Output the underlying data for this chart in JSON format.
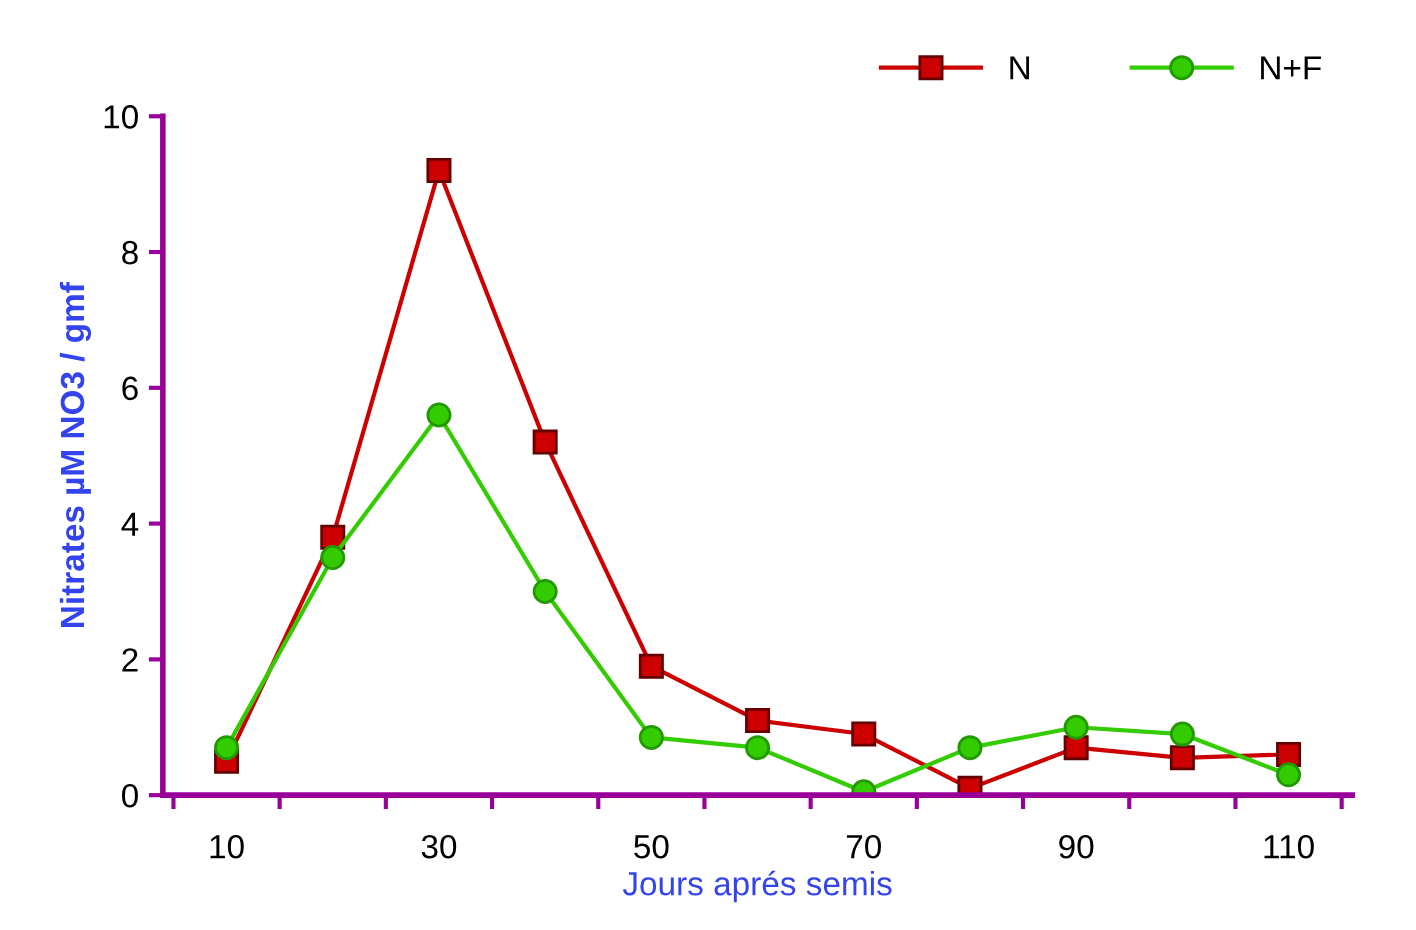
{
  "chart_data": {
    "type": "line",
    "xlabel": "Jours aprés semis",
    "ylabel": "Nitrates µM NO3 / gmf",
    "categories": [
      "10",
      null,
      "30",
      null,
      "50",
      null,
      "70",
      null,
      "90",
      null,
      "110"
    ],
    "series": [
      {
        "name": "N",
        "color": "#cc0000",
        "marker": "square",
        "values": [
          0.5,
          3.8,
          9.2,
          5.2,
          1.9,
          1.1,
          0.9,
          0.1,
          0.7,
          0.55,
          0.6
        ]
      },
      {
        "name": "N+F",
        "color": "#33cc00",
        "marker": "circle",
        "values": [
          0.7,
          3.5,
          5.6,
          3.0,
          0.85,
          0.7,
          0.05,
          0.7,
          1.0,
          0.9,
          0.3
        ]
      }
    ],
    "ylim": [
      0,
      10
    ],
    "yticks": [
      0,
      2,
      4,
      6,
      8,
      10
    ],
    "grid": false,
    "legend": "top right",
    "line_style": "solid"
  }
}
